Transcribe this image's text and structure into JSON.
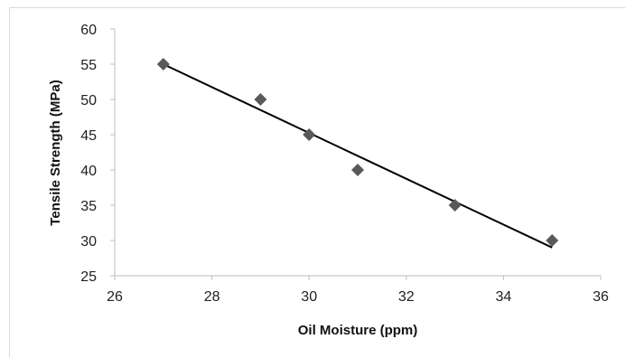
{
  "chart_data": {
    "type": "scatter",
    "title": "",
    "xlabel": "Oil Moisture (ppm)",
    "ylabel": "Tensile Strength (MPa)",
    "xlim": [
      26,
      36
    ],
    "ylim": [
      25,
      60
    ],
    "x_ticks": [
      26,
      28,
      30,
      32,
      34,
      36
    ],
    "y_ticks": [
      25,
      30,
      35,
      40,
      45,
      50,
      55,
      60
    ],
    "x_tick_labels": [
      "26",
      "28",
      "30",
      "32",
      "34",
      "36"
    ],
    "y_tick_labels": [
      "25",
      "30",
      "35",
      "40",
      "45",
      "50",
      "55",
      "60"
    ],
    "grid": false,
    "legend": "none",
    "marker": "diamond",
    "marker_color": "#595959",
    "trendline": {
      "type": "linear",
      "x": [
        27,
        35
      ],
      "y": [
        55,
        29
      ],
      "color": "#000000"
    },
    "series": [
      {
        "x": [
          27,
          29,
          30,
          31,
          33,
          35
        ],
        "y": [
          55,
          50,
          45,
          40,
          35,
          30
        ]
      }
    ]
  }
}
